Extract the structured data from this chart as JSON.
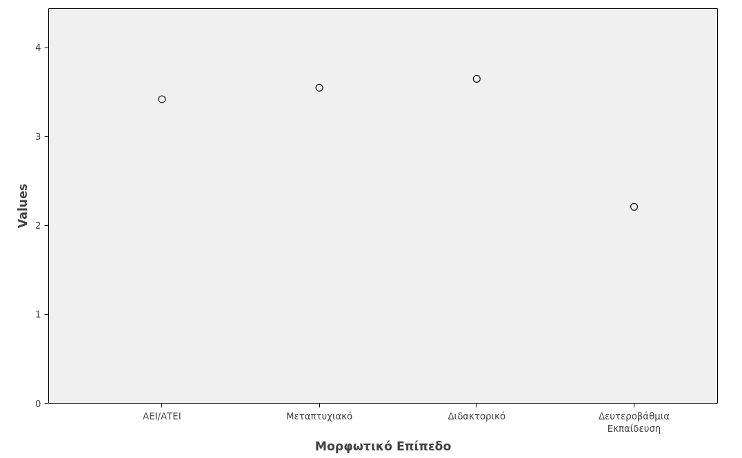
{
  "chart_data": {
    "type": "scatter",
    "xlabel": "Μορφωτικό Επίπεδο",
    "ylabel": "Values",
    "categories": [
      "ΑΕΙ/ΑΤΕΙ",
      "Μεταπτυχιακό",
      "Διδακτορικό",
      "Δευτεροβάθμια\nΕκπαίδευση"
    ],
    "values": [
      3.42,
      3.55,
      3.65,
      2.21
    ],
    "color": "#000000",
    "marker": "circle",
    "ylim": [
      0,
      4.44
    ],
    "yticks": [
      0,
      1,
      2,
      3,
      4
    ],
    "grid": false
  }
}
